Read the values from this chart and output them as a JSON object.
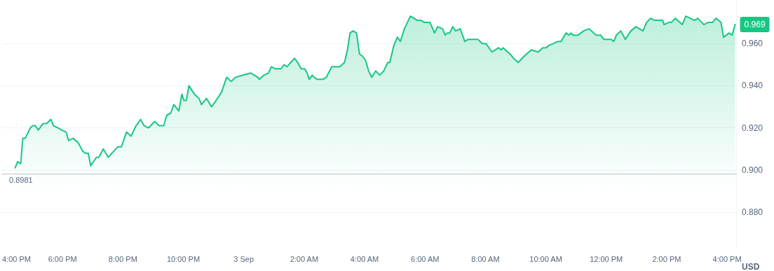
{
  "chart_data": {
    "type": "area",
    "ylabel": "USD",
    "xlim": [
      "--09-02T16:00",
      "--09-03T16:18"
    ],
    "xticks": [
      {
        "value": "--09-02T16:00",
        "label": "4:00 PM"
      },
      {
        "value": "--09-02T18:00",
        "label": "6:00 PM"
      },
      {
        "value": "--09-02T20:00",
        "label": "8:00 PM"
      },
      {
        "value": "--09-02T22:00",
        "label": "10:00 PM"
      },
      {
        "value": "--09-03T00:00",
        "label": "3 Sep"
      },
      {
        "value": "--09-03T02:00",
        "label": "2:00 AM"
      },
      {
        "value": "--09-03T04:00",
        "label": "4:00 AM"
      },
      {
        "value": "--09-03T06:00",
        "label": "6:00 AM"
      },
      {
        "value": "--09-03T08:00",
        "label": "8:00 AM"
      },
      {
        "value": "--09-03T10:00",
        "label": "10:00 AM"
      },
      {
        "value": "--09-03T12:00",
        "label": "12:00 PM"
      },
      {
        "value": "--09-03T14:00",
        "label": "2:00 PM"
      },
      {
        "value": "--09-03T16:00",
        "label": "4:00 PM"
      }
    ],
    "ylim": [
      0.863,
      0.98
    ],
    "yticks": [
      {
        "value": 0.88,
        "label": "0.880"
      },
      {
        "value": 0.9,
        "label": "0.900"
      },
      {
        "value": 0.92,
        "label": "0.920"
      },
      {
        "value": 0.94,
        "label": "0.940"
      },
      {
        "value": 0.96,
        "label": "0.960"
      }
    ],
    "grid": "y",
    "marker": "none",
    "line_style": "solid",
    "ref_lines": [
      {
        "axis": "y",
        "value": 0.8981,
        "label": "0.8981",
        "color": "#808a9d",
        "line_style": "dotted"
      }
    ],
    "annotations": [
      {
        "text": "0.969",
        "x": "--09-03T16:16",
        "y": 0.969
      }
    ],
    "series": [
      {
        "color": "#16c784",
        "x": [
          "--09-02T16:26",
          "--09-02T16:31",
          "--09-02T16:37",
          "--09-02T16:41",
          "--09-02T16:46",
          "--09-02T16:56",
          "--09-02T17:01",
          "--09-02T17:06",
          "--09-02T17:12",
          "--09-02T17:21",
          "--09-02T17:28",
          "--09-02T17:37",
          "--09-02T17:42",
          "--09-02T17:51",
          "--09-02T17:58",
          "--09-02T18:07",
          "--09-02T18:12",
          "--09-02T18:21",
          "--09-02T18:31",
          "--09-02T18:40",
          "--09-02T18:45",
          "--09-02T18:51",
          "--09-02T18:56",
          "--09-02T19:07",
          "--09-02T19:12",
          "--09-02T19:21",
          "--09-02T19:31",
          "--09-02T19:42",
          "--09-02T19:50",
          "--09-02T19:57",
          "--09-02T20:07",
          "--09-02T20:16",
          "--09-02T20:26",
          "--09-02T20:35",
          "--09-02T20:42",
          "--09-02T20:51",
          "--09-02T21:03",
          "--09-02T21:12",
          "--09-02T21:21",
          "--09-02T21:27",
          "--09-02T21:35",
          "--09-02T21:41",
          "--09-02T21:51",
          "--09-02T21:57",
          "--09-02T22:01",
          "--09-02T22:06",
          "--09-02T22:11",
          "--09-02T22:22",
          "--09-02T22:31",
          "--09-02T22:36",
          "--09-02T22:46",
          "--09-02T22:56",
          "--09-02T23:05",
          "--09-02T23:16",
          "--09-02T23:26",
          "--09-02T23:35",
          "--09-02T23:44",
          "--09-02T23:58",
          "--09-03T00:14",
          "--09-03T00:28",
          "--09-03T00:31",
          "--09-03T00:40",
          "--09-03T00:49",
          "--09-03T00:55",
          "--09-03T01:03",
          "--09-03T01:14",
          "--09-03T01:20",
          "--09-03T01:26",
          "--09-03T01:33",
          "--09-03T01:41",
          "--09-03T01:47",
          "--09-03T01:54",
          "--09-03T02:01",
          "--09-03T02:06",
          "--09-03T02:10",
          "--09-03T02:16",
          "--09-03T02:20",
          "--09-03T02:26",
          "--09-03T02:31",
          "--09-03T02:37",
          "--09-03T02:44",
          "--09-03T02:55",
          "--09-03T03:02",
          "--09-03T03:11",
          "--09-03T03:20",
          "--09-03T03:26",
          "--09-03T03:31",
          "--09-03T03:37",
          "--09-03T03:44",
          "--09-03T03:50",
          "--09-03T03:56",
          "--09-03T04:02",
          "--09-03T04:08",
          "--09-03T04:14",
          "--09-03T04:22",
          "--09-03T04:30",
          "--09-03T04:38",
          "--09-03T04:46",
          "--09-03T04:50",
          "--09-03T04:58",
          "--09-03T05:05",
          "--09-03T05:11",
          "--09-03T05:19",
          "--09-03T05:31",
          "--09-03T05:38",
          "--09-03T05:45",
          "--09-03T05:52",
          "--09-03T05:59",
          "--09-03T06:10",
          "--09-03T06:19",
          "--09-03T06:25",
          "--09-03T06:35",
          "--09-03T06:40",
          "--09-03T06:44",
          "--09-03T06:49",
          "--09-03T06:55",
          "--09-03T07:01",
          "--09-03T07:10",
          "--09-03T07:19",
          "--09-03T07:26",
          "--09-03T07:35",
          "--09-03T07:45",
          "--09-03T07:54",
          "--09-03T08:01",
          "--09-03T08:13",
          "--09-03T08:26",
          "--09-03T08:31",
          "--09-03T08:35",
          "--09-03T08:49",
          "--09-03T08:56",
          "--09-03T09:05",
          "--09-03T09:17",
          "--09-03T09:31",
          "--09-03T09:45",
          "--09-03T09:54",
          "--09-03T10:01",
          "--09-03T10:05",
          "--09-03T10:15",
          "--09-03T10:24",
          "--09-03T10:30",
          "--09-03T10:40",
          "--09-03T10:46",
          "--09-03T10:50",
          "--09-03T10:54",
          "--09-03T11:04",
          "--09-03T11:15",
          "--09-03T11:26",
          "--09-03T11:40",
          "--09-03T11:49",
          "--09-03T11:55",
          "--09-03T12:04",
          "--09-03T12:10",
          "--09-03T12:15",
          "--09-03T12:20",
          "--09-03T12:29",
          "--09-03T12:38",
          "--09-03T12:49",
          "--09-03T12:59",
          "--09-03T13:13",
          "--09-03T13:20",
          "--09-03T13:28",
          "--09-03T13:36",
          "--09-03T13:43",
          "--09-03T13:52",
          "--09-03T13:55",
          "--09-03T14:04",
          "--09-03T14:09",
          "--09-03T14:17",
          "--09-03T14:31",
          "--09-03T14:38",
          "--09-03T14:47",
          "--09-03T14:55",
          "--09-03T15:02",
          "--09-03T15:14",
          "--09-03T15:22",
          "--09-03T15:31",
          "--09-03T15:38",
          "--09-03T15:48",
          "--09-03T15:53",
          "--09-03T16:04",
          "--09-03T16:10",
          "--09-03T16:16"
        ],
        "values": [
          0.901,
          0.904,
          0.903,
          0.915,
          0.915,
          0.92,
          0.921,
          0.921,
          0.919,
          0.922,
          0.922,
          0.924,
          0.921,
          0.92,
          0.919,
          0.918,
          0.914,
          0.915,
          0.913,
          0.909,
          0.908,
          0.908,
          0.902,
          0.906,
          0.906,
          0.91,
          0.906,
          0.909,
          0.911,
          0.911,
          0.918,
          0.916,
          0.921,
          0.924,
          0.921,
          0.92,
          0.923,
          0.921,
          0.921,
          0.926,
          0.927,
          0.931,
          0.928,
          0.936,
          0.933,
          0.933,
          0.94,
          0.936,
          0.934,
          0.931,
          0.934,
          0.93,
          0.933,
          0.937,
          0.944,
          0.942,
          0.944,
          0.945,
          0.946,
          0.944,
          0.943,
          0.945,
          0.946,
          0.949,
          0.948,
          0.948,
          0.95,
          0.949,
          0.951,
          0.953,
          0.951,
          0.948,
          0.948,
          0.946,
          0.943,
          0.945,
          0.944,
          0.943,
          0.943,
          0.943,
          0.944,
          0.949,
          0.949,
          0.949,
          0.951,
          0.957,
          0.965,
          0.966,
          0.965,
          0.955,
          0.954,
          0.952,
          0.947,
          0.944,
          0.947,
          0.945,
          0.947,
          0.951,
          0.951,
          0.959,
          0.963,
          0.961,
          0.967,
          0.973,
          0.972,
          0.971,
          0.971,
          0.97,
          0.97,
          0.965,
          0.968,
          0.967,
          0.964,
          0.965,
          0.965,
          0.968,
          0.966,
          0.967,
          0.961,
          0.962,
          0.962,
          0.962,
          0.96,
          0.96,
          0.956,
          0.958,
          0.957,
          0.958,
          0.955,
          0.953,
          0.951,
          0.954,
          0.957,
          0.956,
          0.958,
          0.958,
          0.959,
          0.96,
          0.961,
          0.961,
          0.965,
          0.964,
          0.965,
          0.964,
          0.964,
          0.966,
          0.967,
          0.964,
          0.964,
          0.962,
          0.962,
          0.962,
          0.961,
          0.964,
          0.966,
          0.962,
          0.966,
          0.968,
          0.966,
          0.97,
          0.972,
          0.971,
          0.971,
          0.971,
          0.969,
          0.97,
          0.97,
          0.972,
          0.969,
          0.973,
          0.972,
          0.971,
          0.972,
          0.969,
          0.97,
          0.97,
          0.972,
          0.97,
          0.963,
          0.965,
          0.964,
          0.969
        ]
      }
    ]
  }
}
